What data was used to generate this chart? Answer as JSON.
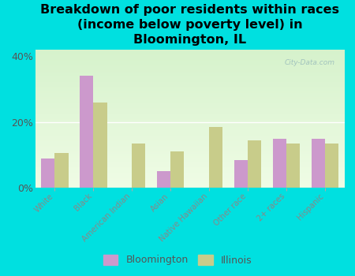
{
  "title": "Breakdown of poor residents within races\n(income below poverty level) in\nBloomington, IL",
  "categories": [
    "White",
    "Black",
    "American Indian",
    "Asian",
    "Native Hawaiian",
    "Other race",
    "2+ races",
    "Hispanic"
  ],
  "bloomington": [
    9.0,
    34.0,
    0.0,
    5.0,
    0.0,
    8.5,
    15.0,
    15.0
  ],
  "illinois": [
    10.5,
    26.0,
    13.5,
    11.0,
    18.5,
    14.5,
    13.5,
    13.5
  ],
  "bloomington_color": "#cc99cc",
  "illinois_color": "#c8cc8a",
  "background_color": "#00e0e0",
  "plot_bg_top": "#e8f5e0",
  "plot_bg_bottom": "#f0fce8",
  "ylim": [
    0,
    42
  ],
  "yticks": [
    0,
    20,
    40
  ],
  "ytick_labels": [
    "0%",
    "20%",
    "40%"
  ],
  "watermark": "City-Data.com",
  "title_fontsize": 11.5,
  "bar_width": 0.35
}
